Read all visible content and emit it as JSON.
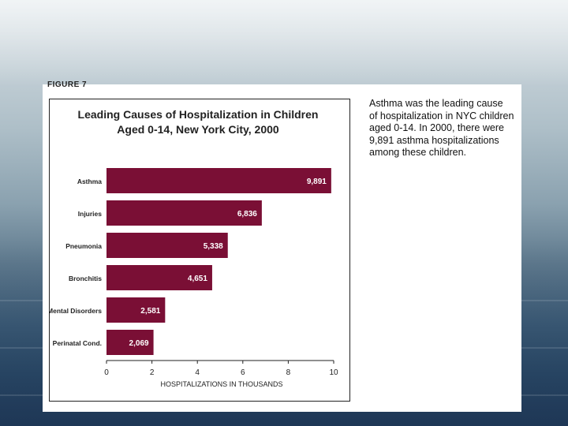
{
  "figure_label": "FIGURE 7",
  "note_lines": [
    "Asthma was the leading cause",
    "of hospitalization in NYC children",
    "aged 0-14.  In 2000, there were",
    "9,891 asthma hospitalizations",
    "among these children."
  ],
  "colors": {
    "bar": "#7a0f35",
    "bar_label": "#ffffff",
    "axis": "#222222"
  },
  "chart_data": {
    "type": "bar",
    "orientation": "horizontal",
    "title": "Leading Causes of Hospitalization in Children",
    "subtitle": "Aged 0-14, New York City, 2000",
    "xlabel": "HOSPITALIZATIONS IN THOUSANDS",
    "ylabel": "",
    "categories": [
      "Asthma",
      "Injuries",
      "Pneumonia",
      "Bronchitis",
      "Mental Disorders",
      "Perinatal Cond."
    ],
    "values": [
      9.891,
      6.836,
      5.338,
      4.651,
      2.581,
      2.069
    ],
    "data_labels": [
      "9,891",
      "6,836",
      "5,338",
      "4,651",
      "2,581",
      "2,069"
    ],
    "xlim": [
      0,
      10
    ],
    "xticks": [
      "0",
      "2",
      "4",
      "6",
      "8",
      "10"
    ],
    "grid": false,
    "legend": "none"
  }
}
